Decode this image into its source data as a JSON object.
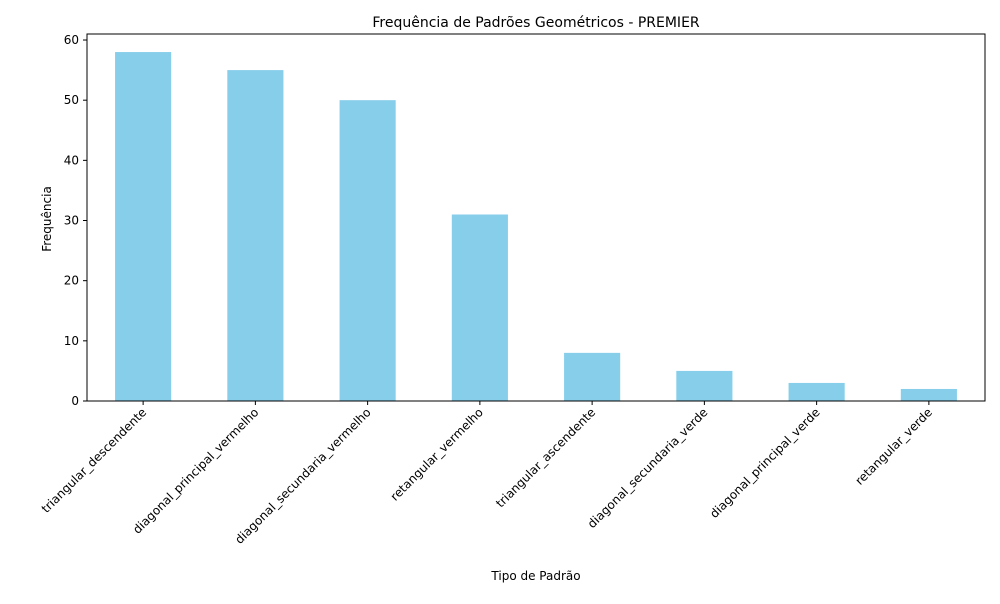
{
  "chart_data": {
    "type": "bar",
    "title": "Frequência de Padrões Geométricos - PREMIER",
    "xlabel": "Tipo de Padrão",
    "ylabel": "Frequência",
    "categories": [
      "triangular_descendente",
      "diagonal_principal_vermelho",
      "diagonal_secundaria_vermelho",
      "retangular_vermelho",
      "triangular_ascendente",
      "diagonal_secundaria_verde",
      "diagonal_principal_verde",
      "retangular_verde"
    ],
    "values": [
      58,
      55,
      50,
      31,
      8,
      5,
      3,
      2
    ],
    "ylim": [
      0,
      61
    ],
    "yticks": [
      0,
      10,
      20,
      30,
      40,
      50,
      60
    ],
    "bar_color": "#87ceeb",
    "grid": false,
    "legend": "none"
  }
}
